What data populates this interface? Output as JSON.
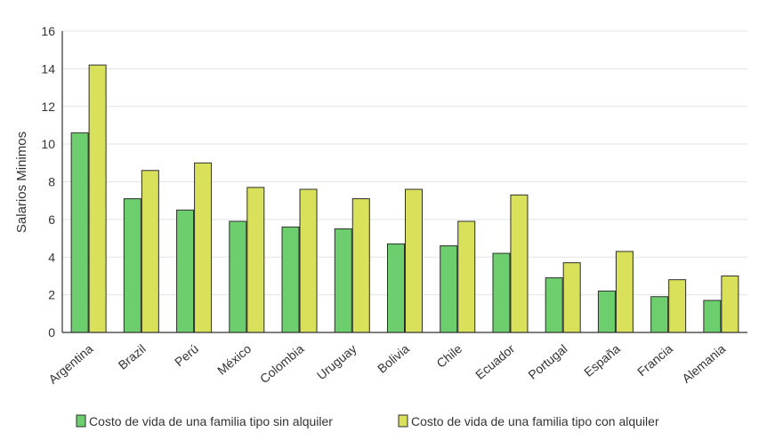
{
  "chart_data": {
    "type": "bar",
    "ylabel": "Salarios Minimos",
    "xlabel": "",
    "ylim": [
      0,
      16
    ],
    "yticks": [
      0,
      2,
      4,
      6,
      8,
      10,
      12,
      14,
      16
    ],
    "grid": true,
    "legend_position": "bottom",
    "categories": [
      "Argentina",
      "Brazil",
      "Perú",
      "México",
      "Colombia",
      "Uruguay",
      "Bolivia",
      "Chile",
      "Ecuador",
      "Portugal",
      "España",
      "Francia",
      "Alemania"
    ],
    "series": [
      {
        "name": "Costo de vida de una familia tipo sin alquiler",
        "color": "#6dce6d",
        "values": [
          10.6,
          7.1,
          6.5,
          5.9,
          5.6,
          5.5,
          4.7,
          4.6,
          4.2,
          2.9,
          2.2,
          1.9,
          1.7
        ]
      },
      {
        "name": "Costo de vida de una familia tipo con alquiler",
        "color": "#d9e05a",
        "values": [
          14.2,
          8.6,
          9.0,
          7.7,
          7.6,
          7.1,
          7.6,
          5.9,
          7.3,
          3.7,
          4.3,
          2.8,
          3.0
        ]
      }
    ]
  }
}
